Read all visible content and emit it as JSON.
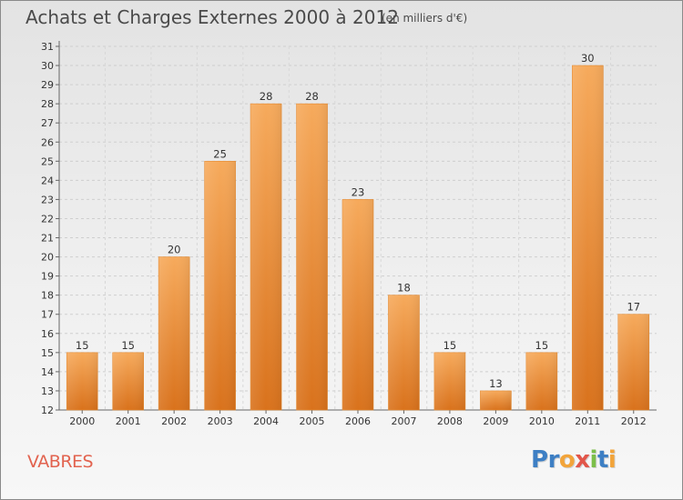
{
  "header": {
    "title": "Achats et Charges Externes 2000 à 2012",
    "subtitle": "(en milliers d'€)"
  },
  "footer": {
    "commune": "VABRES",
    "logo_letters": [
      {
        "char": "P",
        "color": "#3d7fc4"
      },
      {
        "char": "r",
        "color": "#3d7fc4"
      },
      {
        "char": "o",
        "color": "#f2a43a"
      },
      {
        "char": "x",
        "color": "#e2564a"
      },
      {
        "char": "i",
        "color": "#7cbf4a"
      },
      {
        "char": "t",
        "color": "#3d7fc4"
      },
      {
        "char": "i",
        "color": "#f2a43a"
      }
    ]
  },
  "chart_data": {
    "type": "bar",
    "title": "Achats et Charges Externes 2000 à 2012",
    "subtitle": "(en milliers d'€)",
    "xlabel": "",
    "ylabel": "",
    "categories": [
      "2000",
      "2001",
      "2002",
      "2003",
      "2004",
      "2005",
      "2006",
      "2007",
      "2008",
      "2009",
      "2010",
      "2011",
      "2012"
    ],
    "values": [
      15,
      15,
      20,
      25,
      28,
      28,
      23,
      18,
      15,
      13,
      15,
      30,
      17
    ],
    "ylim": [
      12,
      31
    ],
    "yticks": [
      12,
      13,
      14,
      15,
      16,
      17,
      18,
      19,
      20,
      21,
      22,
      23,
      24,
      25,
      26,
      27,
      28,
      29,
      30,
      31
    ],
    "grid": true,
    "bar_color": "#f0923a",
    "bar_color_light": "#f6aa5c",
    "bar_color_dark": "#d9721c"
  }
}
